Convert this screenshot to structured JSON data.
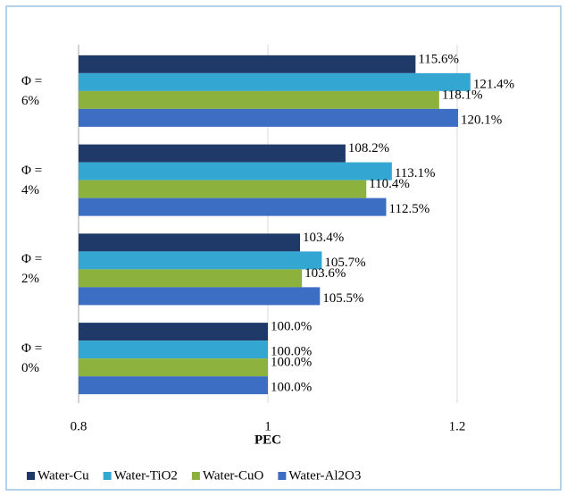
{
  "chart_data": {
    "type": "bar",
    "orientation": "horizontal",
    "x_label": "PEC",
    "categories": [
      "Φ = 6%",
      "Φ = 4%",
      "Φ = 2%",
      "Φ = 0%"
    ],
    "series": [
      {
        "name": "Water-Cu",
        "color": "#1f3a68",
        "values": [
          1.156,
          1.082,
          1.034,
          1.0
        ],
        "value_labels": [
          "115.6%",
          "108.2%",
          "103.4%",
          "100.0%"
        ]
      },
      {
        "name": "Water-TiO2",
        "color": "#33a7d1",
        "values": [
          1.214,
          1.131,
          1.057,
          1.0
        ],
        "value_labels": [
          "121.4%",
          "113.1%",
          "105.7%",
          "100.0%"
        ]
      },
      {
        "name": "Water-CuO",
        "color": "#8cb13c",
        "values": [
          1.181,
          1.104,
          1.036,
          1.0
        ],
        "value_labels": [
          "118.1%",
          "110.4%",
          "103.6%",
          "100.0%"
        ]
      },
      {
        "name": "Water-Al2O3",
        "color": "#3c6fc3",
        "values": [
          1.201,
          1.125,
          1.055,
          1.0
        ],
        "value_labels": [
          "120.1%",
          "112.5%",
          "105.5%",
          "100.0%"
        ]
      }
    ],
    "xlim": [
      0.8,
      1.2
    ],
    "xticks": [
      0.8,
      1,
      1.2
    ],
    "grid": true,
    "legend": "bottom"
  }
}
